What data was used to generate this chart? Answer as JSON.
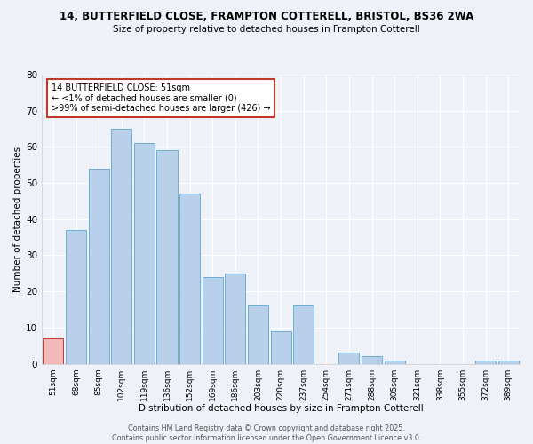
{
  "title_line1": "14, BUTTERFIELD CLOSE, FRAMPTON COTTERELL, BRISTOL, BS36 2WA",
  "title_line2": "Size of property relative to detached houses in Frampton Cotterell",
  "xlabel": "Distribution of detached houses by size in Frampton Cotterell",
  "ylabel": "Number of detached properties",
  "bar_labels": [
    "51sqm",
    "68sqm",
    "85sqm",
    "102sqm",
    "119sqm",
    "136sqm",
    "152sqm",
    "169sqm",
    "186sqm",
    "203sqm",
    "220sqm",
    "237sqm",
    "254sqm",
    "271sqm",
    "288sqm",
    "305sqm",
    "321sqm",
    "338sqm",
    "355sqm",
    "372sqm",
    "389sqm"
  ],
  "bar_values": [
    7,
    37,
    54,
    65,
    61,
    59,
    47,
    24,
    25,
    16,
    9,
    16,
    0,
    3,
    2,
    1,
    0,
    0,
    0,
    1,
    1
  ],
  "highlight_index": 0,
  "bar_color": "#b8d0ea",
  "bar_edge_color": "#6baed6",
  "highlight_bar_color": "#f4b8b8",
  "highlight_bar_edge_color": "#c0392b",
  "annotation_box_edge": "#c0392b",
  "annotation_text_line1": "14 BUTTERFIELD CLOSE: 51sqm",
  "annotation_text_line2": "← <1% of detached houses are smaller (0)",
  "annotation_text_line3": ">99% of semi-detached houses are larger (426) →",
  "ylim": [
    0,
    80
  ],
  "yticks": [
    0,
    10,
    20,
    30,
    40,
    50,
    60,
    70,
    80
  ],
  "background_color": "#eef2f8",
  "grid_color": "#ffffff",
  "footer_line1": "Contains HM Land Registry data © Crown copyright and database right 2025.",
  "footer_line2": "Contains public sector information licensed under the Open Government Licence v3.0."
}
